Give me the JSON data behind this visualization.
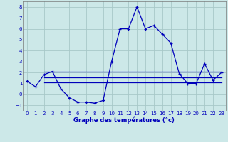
{
  "title": "Graphe des températures (°c)",
  "background_color": "#cce8e8",
  "grid_color": "#a8c8c8",
  "line_color": "#0000bb",
  "ylim": [
    -1.5,
    8.5
  ],
  "xlim": [
    -0.5,
    23.5
  ],
  "yticks": [
    -1,
    0,
    1,
    2,
    3,
    4,
    5,
    6,
    7,
    8
  ],
  "xticks": [
    0,
    1,
    2,
    3,
    4,
    5,
    6,
    7,
    8,
    9,
    10,
    11,
    12,
    13,
    14,
    15,
    16,
    17,
    18,
    19,
    20,
    21,
    22,
    23
  ],
  "hours": [
    0,
    1,
    2,
    3,
    4,
    5,
    6,
    7,
    8,
    9,
    10,
    11,
    12,
    13,
    14,
    15,
    16,
    17,
    18,
    19,
    20,
    21,
    22,
    23
  ],
  "temperatures": [
    1.2,
    0.7,
    1.8,
    2.1,
    0.5,
    -0.3,
    -0.7,
    -0.7,
    -0.8,
    -0.55,
    3.0,
    6.0,
    6.0,
    8.0,
    6.0,
    6.3,
    5.5,
    4.7,
    1.9,
    1.0,
    1.0,
    2.8,
    1.3,
    2.0
  ],
  "mean_line_y1": 2.1,
  "mean_line_y2": 1.55,
  "mean_line_y3": 1.1,
  "mean_x_start": 2,
  "mean_x_end": 23
}
